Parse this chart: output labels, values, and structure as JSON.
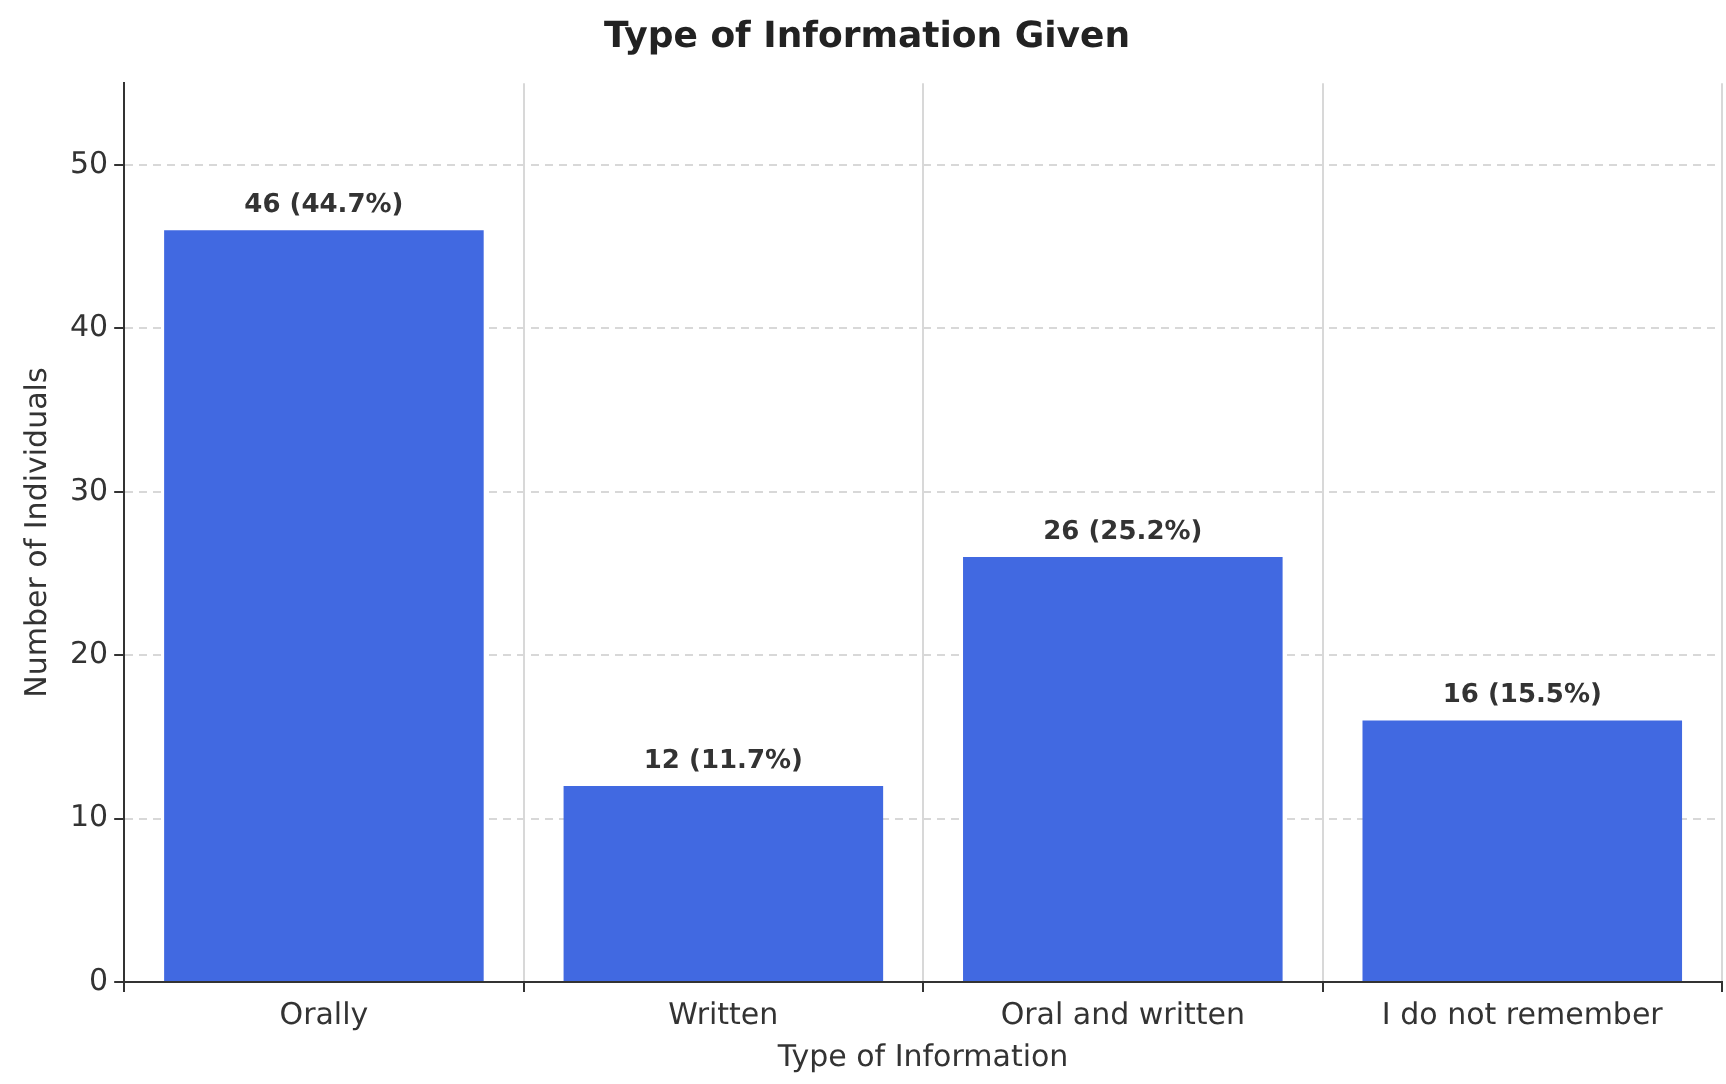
{
  "chart_data": {
    "type": "bar",
    "title": "Type of Information Given",
    "xlabel": "Type of Information",
    "ylabel": "Number of Individuals",
    "categories": [
      "Orally",
      "Written",
      "Oral and written",
      "I do not remember"
    ],
    "values": [
      46,
      12,
      26,
      16
    ],
    "color": "#4169e1",
    "value_labels": [
      "46 (44.7%)",
      "12 (11.7%)",
      "26 (25.2%)",
      "16 (15.5%)"
    ],
    "ylim": [
      0,
      55
    ],
    "yticks": [
      0,
      10,
      20,
      30,
      40,
      50
    ],
    "grid": true
  }
}
